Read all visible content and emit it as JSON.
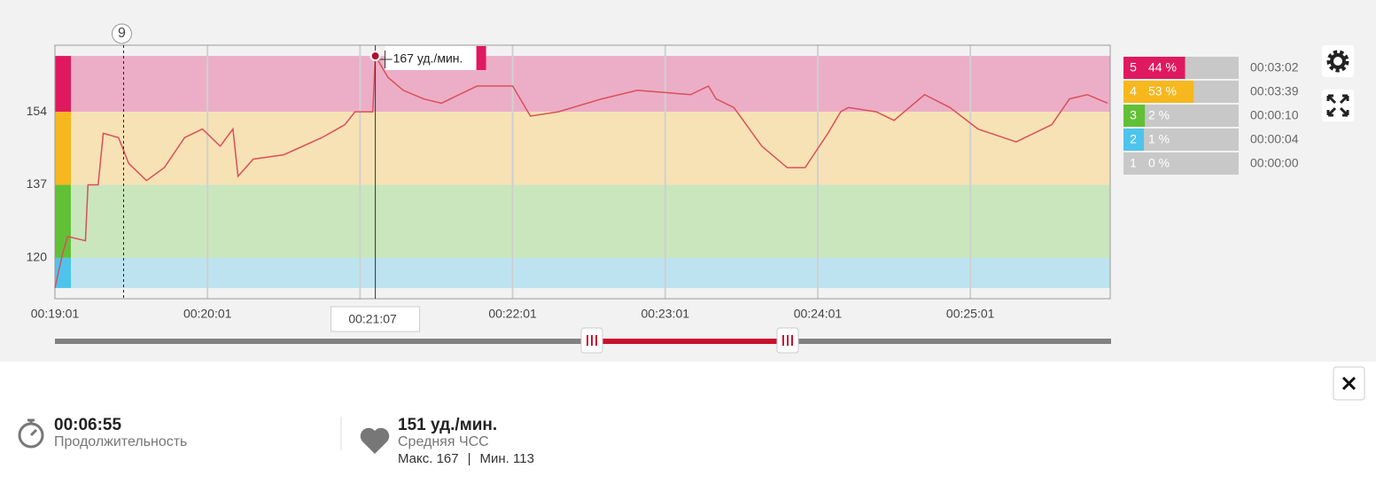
{
  "chart": {
    "type": "line",
    "color": "#d9505a",
    "x": [
      1141,
      1144,
      1146,
      1153,
      1154,
      1158,
      1160,
      1166,
      1170,
      1177,
      1184,
      1192,
      1199,
      1206,
      1211,
      1213,
      1219,
      1231,
      1246,
      1255,
      1259,
      1266,
      1267,
      1272,
      1278,
      1286,
      1293,
      1307,
      1321,
      1328,
      1339,
      1356,
      1370,
      1391,
      1398,
      1401,
      1408,
      1419,
      1429,
      1436,
      1445,
      1450,
      1453,
      1464,
      1471,
      1483,
      1493,
      1504,
      1519,
      1533,
      1540,
      1547,
      1555
    ],
    "values": [
      113,
      121,
      125,
      124,
      137,
      137,
      149,
      148,
      142,
      138,
      141,
      148,
      150,
      146,
      150,
      139,
      143,
      144,
      148,
      151,
      154,
      154,
      167,
      162,
      159,
      157,
      156,
      160,
      160,
      153,
      154,
      157,
      159,
      158,
      160,
      157,
      155,
      146,
      141,
      141,
      149,
      154,
      155,
      154,
      152,
      158,
      155,
      150,
      147,
      151,
      157,
      158,
      156
    ],
    "xlim": [
      1141,
      1556
    ],
    "ylim": [
      110.5,
      169.5
    ],
    "xticks": [
      {
        "value": 1141,
        "label": "00:19:01"
      },
      {
        "value": 1201,
        "label": "00:20:01"
      },
      {
        "value": 1261,
        "label": "00:21:01"
      },
      {
        "value": 1321,
        "label": "00:22:01"
      },
      {
        "value": 1381,
        "label": "00:23:01"
      },
      {
        "value": 1441,
        "label": "00:24:01"
      },
      {
        "value": 1501,
        "label": "00:25:01"
      }
    ],
    "yticks": [
      120,
      137,
      154
    ],
    "marker": {
      "x": 1168,
      "label": "9"
    },
    "cursor": {
      "x": 1267,
      "value": 167,
      "x_label": "00:21:07",
      "value_label": "167 уд./мин."
    }
  },
  "zones": [
    {
      "label": "5",
      "percent": 44,
      "percent_label": "44 %",
      "time": "00:03:02",
      "color": "#e0195f",
      "band_color": "#ecaec6",
      "range": [
        154,
        167
      ]
    },
    {
      "label": "4",
      "percent": 53,
      "percent_label": "53 %",
      "time": "00:03:39",
      "color": "#f7b71e",
      "band_color": "#f6e2b4",
      "range": [
        137,
        154
      ]
    },
    {
      "label": "3",
      "percent": 2,
      "percent_label": "2 %",
      "time": "00:00:10",
      "color": "#62c037",
      "band_color": "#cae6bd",
      "range": [
        120,
        137
      ]
    },
    {
      "label": "2",
      "percent": 1,
      "percent_label": "1 %",
      "time": "00:00:04",
      "color": "#4ec4ec",
      "band_color": "#bde3f0",
      "range": [
        113,
        120
      ]
    },
    {
      "label": "1",
      "percent": 0,
      "percent_label": "0 %",
      "time": "00:00:00",
      "color": "#c8c8c8"
    }
  ],
  "summary": {
    "duration": "00:06:55",
    "duration_label": "Продолжительность",
    "avg": "151 уд./мин.",
    "avg_label": "Средняя ЧСС",
    "max_label": "Макс. 167",
    "separator": "|",
    "min_label": "Мин. 113"
  }
}
